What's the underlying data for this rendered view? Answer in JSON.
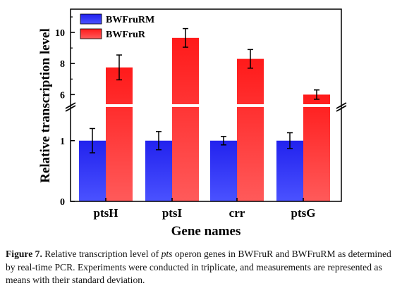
{
  "chart_data": {
    "type": "bar",
    "categories": [
      "ptsH",
      "ptsI",
      "crr",
      "ptsG"
    ],
    "series": [
      {
        "name": "BWFruRM",
        "values": [
          1.0,
          1.0,
          1.0,
          1.0
        ],
        "errors": [
          0.2,
          0.15,
          0.07,
          0.13
        ],
        "color": "#2e2ef2"
      },
      {
        "name": "BWFruR",
        "values": [
          7.75,
          9.65,
          8.3,
          6.0
        ],
        "errors": [
          0.8,
          0.6,
          0.6,
          0.3
        ],
        "color": "#f42a2a"
      }
    ],
    "xlabel": "Gene names",
    "ylabel": "Relative transcription level",
    "y_axis_break": {
      "lower_range": [
        0,
        1.6
      ],
      "upper_range": [
        5.2,
        11.5
      ]
    },
    "yticks_lower": [
      0,
      1
    ],
    "yticks_upper": [
      6,
      8,
      10
    ],
    "legend_position": "top-left"
  },
  "caption": {
    "label": "Figure 7.",
    "text_1": " Relative transcription level of ",
    "italic": "pts",
    "text_2": " operon genes in BWFruR and BWFruRM as determined by real-time PCR. Experiments were conducted in triplicate, and measurements are represented as means with their standard deviation."
  }
}
